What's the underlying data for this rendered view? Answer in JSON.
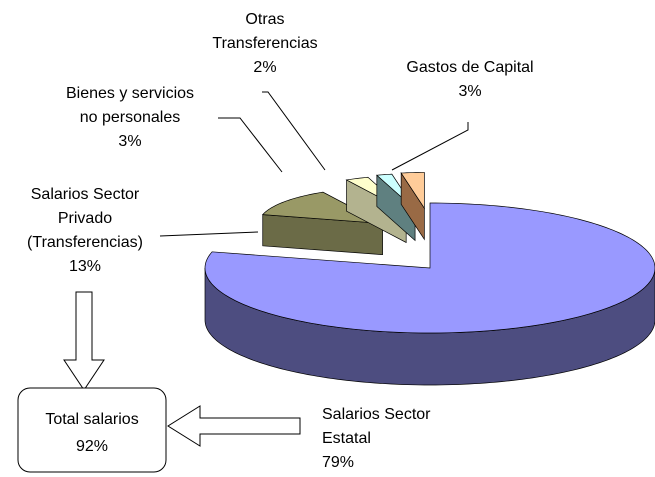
{
  "chart_data": {
    "type": "pie3d",
    "categories": [
      "Salarios Sector\nEstatal",
      "Salarios Sector\nPrivado\n(Transferencias)",
      "Bienes y servicios\nno personales",
      "Otras\nTransferencias",
      "Gastos de Capital"
    ],
    "values": [
      79,
      13,
      3,
      2,
      3
    ],
    "value_labels": [
      "79%",
      "13%",
      "3%",
      "2%",
      "3%"
    ],
    "colors": [
      "#9999ff",
      "#999966",
      "#ffffcc",
      "#ccffff",
      "#ffcc99"
    ],
    "side_colors": [
      "#4d4d80",
      "#6b6b47",
      "#b3b38f",
      "#5f8080",
      "#996a45"
    ],
    "annotation": {
      "text": "Total salarios",
      "value": 92,
      "value_label": "92%"
    }
  }
}
